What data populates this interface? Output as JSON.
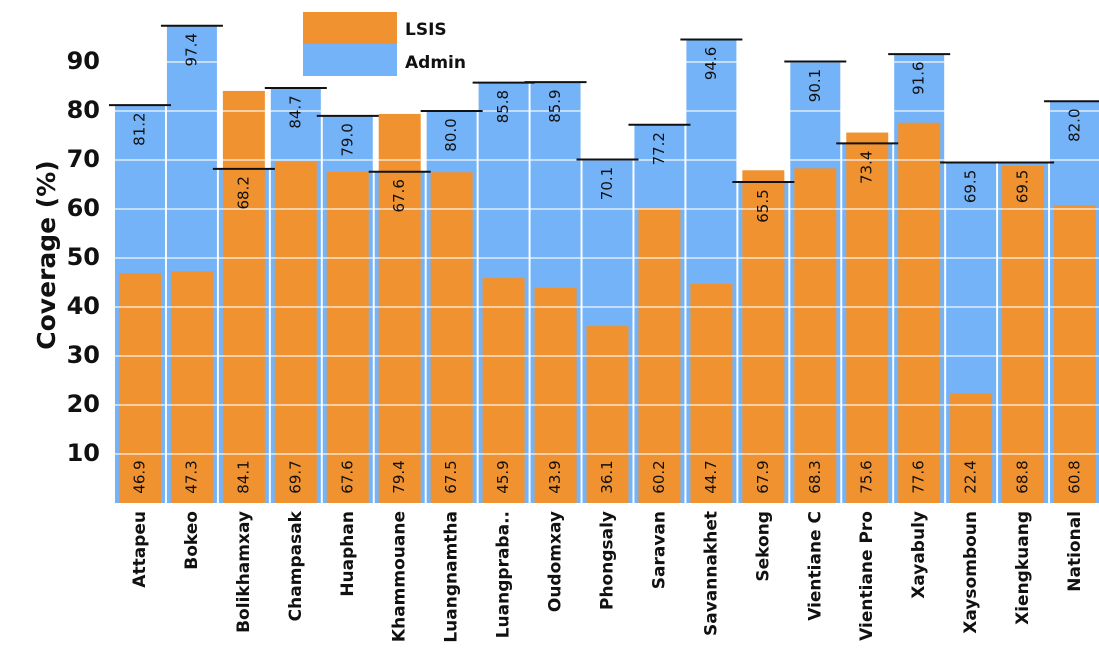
{
  "chart_data": {
    "type": "bar",
    "title": "",
    "xlabel": "",
    "ylabel": "Coverage (%)",
    "ylim": [
      0,
      100
    ],
    "yticks": [
      10,
      20,
      30,
      40,
      50,
      60,
      70,
      80,
      90
    ],
    "grid": true,
    "legend_position": "top-center",
    "categories": [
      "Attapeu",
      "Bokeo",
      "Bolikhamxay",
      "Champasak",
      "Huaphan",
      "Khammouane",
      "Luangnamtha",
      "Luangpraba..",
      "Oudomxay",
      "Phongsaly",
      "Saravan",
      "Savannakhet",
      "Sekong",
      "Vientiane C",
      "Vientiane Pro",
      "Xayabuly",
      "Xaysomboun",
      "Xiengkuang",
      "National"
    ],
    "series": [
      {
        "name": "Admin",
        "color": "#74b3f8",
        "values": [
          81.2,
          97.4,
          68.2,
          84.7,
          79.0,
          67.6,
          80.0,
          85.8,
          85.9,
          70.1,
          77.2,
          94.6,
          65.5,
          90.1,
          73.4,
          91.6,
          69.5,
          69.5,
          82.0
        ]
      },
      {
        "name": "LSIS",
        "color": "#f0922f",
        "values": [
          46.9,
          47.3,
          84.1,
          69.7,
          67.6,
          79.4,
          67.5,
          45.9,
          43.9,
          36.1,
          60.2,
          44.7,
          67.9,
          68.3,
          75.6,
          77.6,
          22.4,
          68.8,
          60.8
        ]
      }
    ],
    "admin_labels": [
      "81.2",
      "97.4",
      "68.2",
      "84.7",
      "79.0",
      "67.6",
      "80.0",
      "85.8",
      "85.9",
      "70.1",
      "77.2",
      "94.6",
      "65.5",
      "90.1",
      "73.4",
      "91.6",
      "69.5",
      "69.5",
      "82.0"
    ],
    "lsis_labels": [
      "46.9",
      "47.3",
      "84.1",
      "69.7",
      "67.6",
      "79.4",
      "67.5",
      "45.9",
      "43.9",
      "36.1",
      "60.2",
      "44.7",
      "67.9",
      "68.3",
      "75.6",
      "77.6",
      "22.4",
      "68.8",
      "60.8"
    ]
  }
}
